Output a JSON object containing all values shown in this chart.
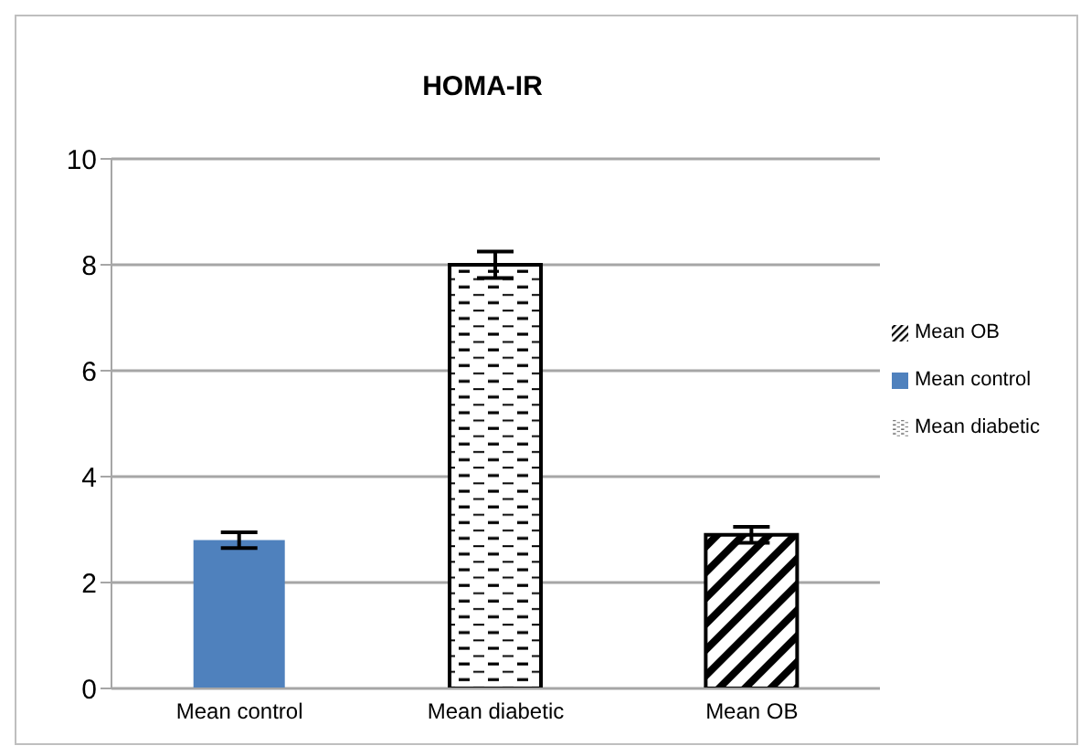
{
  "chart_data": {
    "type": "bar",
    "title": "HOMA-IR",
    "categories": [
      "Mean control",
      "Mean diabetic",
      "Mean OB"
    ],
    "series": [
      {
        "name": "Mean control",
        "color": "#4f81bd",
        "values": [
          2.8,
          null,
          null
        ],
        "errors": [
          0.15,
          null,
          null
        ]
      },
      {
        "name": "Mean diabetic",
        "color": "#000000",
        "values": [
          null,
          8.0,
          null
        ],
        "errors": [
          null,
          0.25,
          null
        ]
      },
      {
        "name": "Mean OB",
        "color": "#000000",
        "values": [
          null,
          null,
          2.9
        ],
        "errors": [
          null,
          null,
          0.15
        ]
      }
    ],
    "ylim": [
      0,
      10
    ],
    "yticks": [
      0,
      2,
      4,
      6,
      8,
      10
    ],
    "grid": "y",
    "legend": "right",
    "stacked": true
  }
}
